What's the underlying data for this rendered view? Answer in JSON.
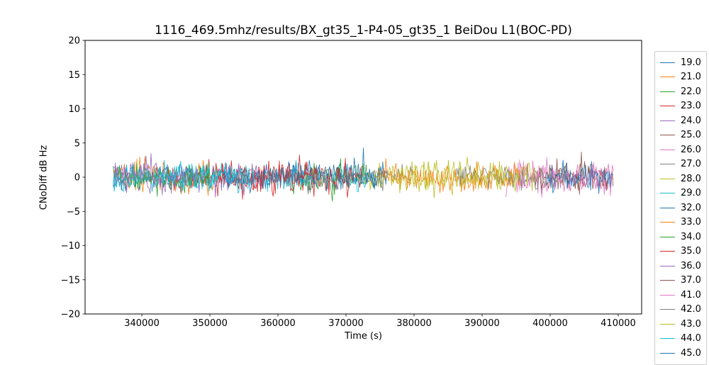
{
  "chart_data": {
    "type": "line",
    "title": "1116_469.5mhz/results/BX_gt35_1-P4-05_gt35_1 BeiDou L1(BOC-PD)",
    "xlabel": "Time (s)",
    "ylabel": "CNoDiff dB Hz",
    "xlim": [
      331660,
      413440
    ],
    "ylim": [
      -20,
      20
    ],
    "grid": false,
    "legend_position": "right-outside",
    "xticks": {
      "values": [
        340000,
        350000,
        360000,
        370000,
        380000,
        390000,
        400000,
        410000
      ],
      "labels": [
        "340000",
        "350000",
        "360000",
        "370000",
        "380000",
        "390000",
        "400000",
        "410000"
      ]
    },
    "yticks": {
      "values": [
        -20,
        -15,
        -10,
        -5,
        0,
        5,
        10,
        15,
        20
      ],
      "labels": [
        "−20",
        "−15",
        "−10",
        "−5",
        "0",
        "5",
        "10",
        "15",
        "20"
      ]
    },
    "description": "Noisy CN0-difference traces per satellite, centered at 0 dB with ~±2 dB jitter and occasional ±4 dB spikes; each trace covers a sub-interval of 335800–409300 s",
    "series": [
      {
        "name": "19.0",
        "color": "#1f77b4",
        "x_start": 335800,
        "x_end": 375500,
        "mean": 0,
        "amplitude": 1.0,
        "seed": 11
      },
      {
        "name": "21.0",
        "color": "#ff7f0e",
        "x_start": 335800,
        "x_end": 352000,
        "mean": 0,
        "amplitude": 1.1,
        "seed": 22
      },
      {
        "name": "22.0",
        "color": "#2ca02c",
        "x_start": 362000,
        "x_end": 374500,
        "mean": 0,
        "amplitude": 1.2,
        "seed": 33
      },
      {
        "name": "23.0",
        "color": "#d62728",
        "x_start": 341000,
        "x_end": 366000,
        "mean": 0,
        "amplitude": 1.1,
        "seed": 44
      },
      {
        "name": "24.0",
        "color": "#9467bd",
        "x_start": 335800,
        "x_end": 359000,
        "mean": 0,
        "amplitude": 1.0,
        "seed": 55
      },
      {
        "name": "25.0",
        "color": "#8c564b",
        "x_start": 397500,
        "x_end": 408500,
        "mean": 0,
        "amplitude": 1.1,
        "seed": 66
      },
      {
        "name": "26.0",
        "color": "#e377c2",
        "x_start": 393500,
        "x_end": 409300,
        "mean": 0,
        "amplitude": 1.1,
        "seed": 77
      },
      {
        "name": "27.0",
        "color": "#7f7f7f",
        "x_start": 361000,
        "x_end": 380000,
        "mean": 0,
        "amplitude": 0.9,
        "seed": 88
      },
      {
        "name": "28.0",
        "color": "#bcbd22",
        "x_start": 372500,
        "x_end": 395500,
        "mean": 0,
        "amplitude": 1.0,
        "seed": 99
      },
      {
        "name": "29.0",
        "color": "#17becf",
        "x_start": 335800,
        "x_end": 373000,
        "mean": 0,
        "amplitude": 1.0,
        "seed": 110
      },
      {
        "name": "32.0",
        "color": "#1f77b4",
        "x_start": 352000,
        "x_end": 376000,
        "mean": 0,
        "amplitude": 1.0,
        "seed": 121
      },
      {
        "name": "33.0",
        "color": "#ff7f0e",
        "x_start": 374500,
        "x_end": 396000,
        "mean": 0,
        "amplitude": 1.0,
        "seed": 132
      },
      {
        "name": "34.0",
        "color": "#2ca02c",
        "x_start": 335800,
        "x_end": 350000,
        "mean": 0,
        "amplitude": 1.0,
        "seed": 143
      },
      {
        "name": "35.0",
        "color": "#d62728",
        "x_start": 351000,
        "x_end": 372500,
        "mean": 0,
        "amplitude": 1.1,
        "seed": 154
      },
      {
        "name": "36.0",
        "color": "#9467bd",
        "x_start": 335800,
        "x_end": 348000,
        "mean": 0,
        "amplitude": 1.0,
        "seed": 165
      },
      {
        "name": "37.0",
        "color": "#8c564b",
        "x_start": 398000,
        "x_end": 409300,
        "mean": 0,
        "amplitude": 1.2,
        "seed": 176
      },
      {
        "name": "41.0",
        "color": "#e377c2",
        "x_start": 395500,
        "x_end": 409300,
        "mean": 0,
        "amplitude": 1.2,
        "seed": 187
      },
      {
        "name": "42.0",
        "color": "#7f7f7f",
        "x_start": 386000,
        "x_end": 402500,
        "mean": 0,
        "amplitude": 1.0,
        "seed": 198
      },
      {
        "name": "43.0",
        "color": "#bcbd22",
        "x_start": 376500,
        "x_end": 398000,
        "mean": 0,
        "amplitude": 1.0,
        "seed": 209
      },
      {
        "name": "44.0",
        "color": "#17becf",
        "x_start": 335800,
        "x_end": 356000,
        "mean": 0,
        "amplitude": 1.0,
        "seed": 220
      },
      {
        "name": "45.0",
        "color": "#1f77b4",
        "x_start": 399500,
        "x_end": 409300,
        "mean": 0,
        "amplitude": 1.0,
        "seed": 231
      }
    ]
  }
}
